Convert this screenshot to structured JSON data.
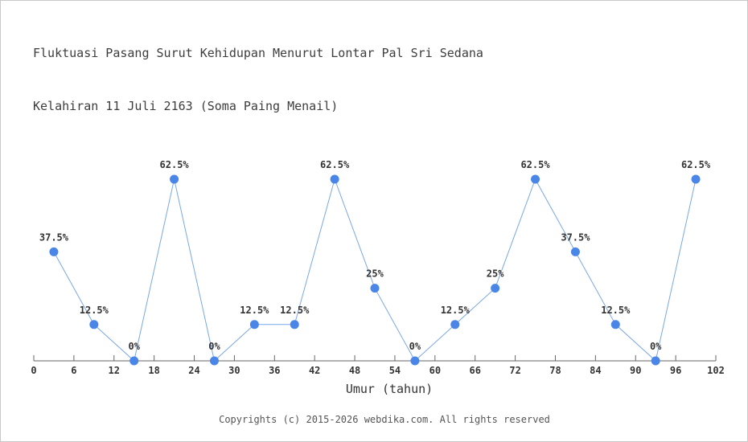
{
  "page": {
    "title_line1": "Fluktuasi Pasang Surut Kehidupan Menurut Lontar Pal Sri Sedana",
    "title_line2": "Kelahiran 11 Juli 2163 (Soma Paing Menail)",
    "footer": "Copyrights (c) 2015-2026 webdika.com. All rights reserved"
  },
  "chart_data": {
    "type": "line",
    "title": "Fluktuasi Pasang Surut Kehidupan Menurut Lontar Pal Sri Sedana — Kelahiran 11 Juli 2163 (Soma Paing Menail)",
    "xlabel": "Umur (tahun)",
    "ylabel": "",
    "x": [
      3,
      9,
      15,
      21,
      27,
      33,
      39,
      45,
      51,
      57,
      63,
      69,
      75,
      81,
      87,
      93,
      99
    ],
    "values": [
      37.5,
      12.5,
      0,
      62.5,
      0,
      12.5,
      12.5,
      62.5,
      25,
      0,
      12.5,
      25,
      62.5,
      37.5,
      12.5,
      0,
      62.5
    ],
    "point_labels": [
      "37.5%",
      "12.5%",
      "0%",
      "62.5%",
      "0%",
      "12.5%",
      "12.5%",
      "62.5%",
      "25%",
      "0%",
      "12.5%",
      "25%",
      "62.5%",
      "37.5%",
      "12.5%",
      "0%",
      "62.5%"
    ],
    "x_ticks": [
      0,
      6,
      12,
      18,
      24,
      30,
      36,
      42,
      48,
      54,
      60,
      66,
      72,
      78,
      84,
      90,
      96,
      102
    ],
    "xlim": [
      0,
      102
    ],
    "ylim": [
      0,
      70
    ],
    "grid": false,
    "legend": null,
    "colors": {
      "marker": "#4a85e8",
      "line": "#7aa7e8",
      "axis": "#666666",
      "label": "#333333",
      "tick_label": "#333333"
    }
  }
}
